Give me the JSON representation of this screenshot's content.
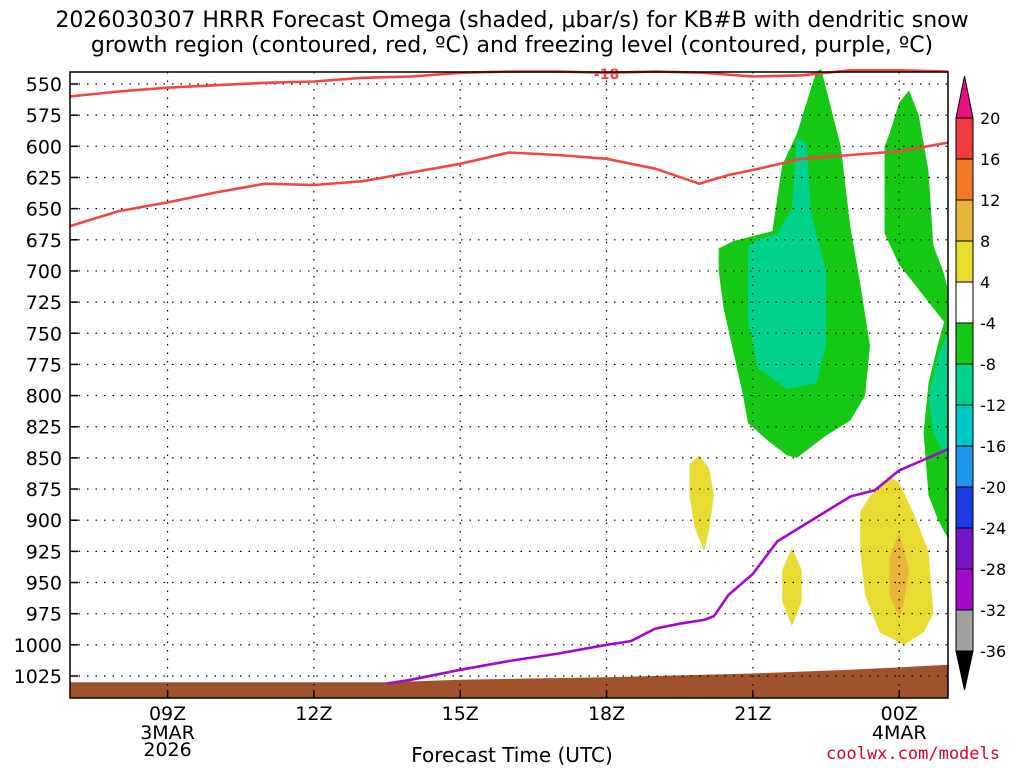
{
  "chart_data": {
    "type": "contour",
    "title": "2026030307 HRRR Forecast Omega (shaded, μbar/s) for KB#B with dendritic snow\ngrowth region (contoured, red, ºC) and freezing level (contoured, purple, ºC)",
    "xlabel": "Forecast Time (UTC)",
    "watermark": "coolwx.com/models",
    "x_range_hours": [
      7,
      25
    ],
    "x_ticks": [
      {
        "hour": 9,
        "label": "09Z",
        "sub": [
          "3MAR",
          "2026"
        ]
      },
      {
        "hour": 12,
        "label": "12Z",
        "sub": []
      },
      {
        "hour": 15,
        "label": "15Z",
        "sub": []
      },
      {
        "hour": 18,
        "label": "18Z",
        "sub": []
      },
      {
        "hour": 21,
        "label": "21Z",
        "sub": []
      },
      {
        "hour": 24,
        "label": "00Z",
        "sub": [
          "4MAR"
        ]
      }
    ],
    "y_ticks_mb": [
      550,
      575,
      600,
      625,
      650,
      675,
      700,
      725,
      750,
      775,
      800,
      825,
      850,
      875,
      900,
      925,
      950,
      975,
      1000,
      1025
    ],
    "grid": true,
    "colorbar": {
      "levels": [
        20,
        16,
        12,
        8,
        4,
        -4,
        -8,
        -12,
        -16,
        -20,
        -24,
        -28,
        -32,
        -36
      ],
      "colors": [
        "#e8117f",
        "#f03c3c",
        "#f07a28",
        "#e8b43c",
        "#e8dc32",
        "#ffffff",
        "#14c814",
        "#00d28c",
        "#00c8c8",
        "#1e96f0",
        "#1e3ce6",
        "#7814c8",
        "#a00ac8",
        "#a0a0a0",
        "#000000"
      ]
    },
    "contour_label": "-18",
    "series": [
      {
        "color": "#f04646",
        "points": [
          [
            7,
            560
          ],
          [
            8,
            556
          ],
          [
            9,
            553
          ],
          [
            10,
            551
          ],
          [
            11,
            549
          ],
          [
            12,
            548
          ],
          [
            13,
            545
          ],
          [
            14,
            544
          ],
          [
            15,
            541
          ],
          [
            16,
            540
          ],
          [
            17,
            540
          ],
          [
            18,
            541
          ],
          [
            19,
            540
          ],
          [
            20,
            541
          ],
          [
            21,
            544
          ],
          [
            22,
            543
          ],
          [
            23,
            539
          ],
          [
            24,
            539
          ],
          [
            25,
            540
          ]
        ]
      },
      {
        "color": "#f04646",
        "points": [
          [
            7,
            664
          ],
          [
            8,
            652
          ],
          [
            9,
            645
          ],
          [
            10,
            637
          ],
          [
            11,
            630
          ],
          [
            12,
            631
          ],
          [
            13,
            628
          ],
          [
            14,
            621
          ],
          [
            15,
            614
          ],
          [
            16,
            605
          ],
          [
            17,
            607
          ],
          [
            18,
            610
          ],
          [
            19,
            618
          ],
          [
            19.9,
            630
          ],
          [
            20.5,
            623
          ],
          [
            21,
            619
          ],
          [
            22,
            610
          ],
          [
            23,
            607
          ],
          [
            24,
            604
          ],
          [
            25,
            597
          ]
        ]
      },
      {
        "color": "#a00ac8",
        "points": [
          [
            13.5,
            1031
          ],
          [
            14,
            1028
          ],
          [
            15,
            1020
          ],
          [
            16,
            1013
          ],
          [
            17,
            1007
          ],
          [
            18,
            1000
          ],
          [
            18.5,
            997
          ],
          [
            19,
            987
          ],
          [
            19.5,
            983
          ],
          [
            20,
            980
          ],
          [
            20.2,
            977
          ],
          [
            20.5,
            960
          ],
          [
            21,
            943
          ],
          [
            21.5,
            917
          ],
          [
            22,
            905
          ],
          [
            23,
            881
          ],
          [
            23.5,
            876
          ],
          [
            24,
            860
          ],
          [
            25,
            843
          ]
        ]
      }
    ],
    "regions": [
      {
        "value": -6,
        "points": [
          [
            20.3,
            682
          ],
          [
            20.6,
            676
          ],
          [
            21,
            672
          ],
          [
            21.4,
            668
          ],
          [
            21.6,
            615
          ],
          [
            21.9,
            590
          ],
          [
            22.3,
            540
          ],
          [
            22.4,
            538
          ],
          [
            22.8,
            600
          ],
          [
            23,
            665
          ],
          [
            23.2,
            710
          ],
          [
            23.4,
            760
          ],
          [
            23.3,
            800
          ],
          [
            23,
            820
          ],
          [
            22.5,
            832
          ],
          [
            21.9,
            850
          ],
          [
            21.7,
            848
          ],
          [
            21.3,
            836
          ],
          [
            20.9,
            822
          ],
          [
            20.8,
            800
          ],
          [
            20.6,
            765
          ],
          [
            20.4,
            730
          ],
          [
            20.3,
            700
          ]
        ]
      },
      {
        "value": -10,
        "points": [
          [
            20.9,
            680
          ],
          [
            21.1,
            675
          ],
          [
            21.5,
            670
          ],
          [
            21.8,
            650
          ],
          [
            21.9,
            593
          ],
          [
            22.1,
            597
          ],
          [
            22.2,
            655
          ],
          [
            22.5,
            700
          ],
          [
            22.5,
            760
          ],
          [
            22.3,
            790
          ],
          [
            21.7,
            795
          ],
          [
            21.1,
            778
          ],
          [
            20.9,
            740
          ]
        ]
      },
      {
        "value": -6,
        "points": [
          [
            23.7,
            600
          ],
          [
            23.8,
            590
          ],
          [
            24,
            565
          ],
          [
            24.2,
            555
          ],
          [
            24.4,
            575
          ],
          [
            24.6,
            620
          ],
          [
            24.7,
            680
          ],
          [
            24.9,
            700
          ],
          [
            25,
            715
          ],
          [
            25,
            745
          ],
          [
            24.7,
            730
          ],
          [
            24.3,
            710
          ],
          [
            24,
            695
          ],
          [
            23.7,
            670
          ]
        ]
      },
      {
        "value": -6,
        "points": [
          [
            25,
            730
          ],
          [
            24.8,
            758
          ],
          [
            24.6,
            790
          ],
          [
            24.5,
            830
          ],
          [
            24.6,
            880
          ],
          [
            24.8,
            900
          ],
          [
            25,
            915
          ]
        ]
      },
      {
        "value": -10,
        "points": [
          [
            25,
            748
          ],
          [
            24.8,
            768
          ],
          [
            24.6,
            800
          ],
          [
            24.7,
            830
          ],
          [
            24.9,
            845
          ],
          [
            25,
            848
          ]
        ]
      },
      {
        "value": 6,
        "points": [
          [
            19.7,
            855
          ],
          [
            19.9,
            848
          ],
          [
            20.1,
            858
          ],
          [
            20.2,
            880
          ],
          [
            20.1,
            908
          ],
          [
            20,
            925
          ],
          [
            19.8,
            905
          ],
          [
            19.7,
            880
          ]
        ]
      },
      {
        "value": 6,
        "points": [
          [
            21.6,
            940
          ],
          [
            21.8,
            922
          ],
          [
            22,
            940
          ],
          [
            22,
            965
          ],
          [
            21.8,
            985
          ],
          [
            21.6,
            965
          ]
        ]
      },
      {
        "value": 6,
        "points": [
          [
            23.2,
            893
          ],
          [
            23.5,
            875
          ],
          [
            23.8,
            865
          ],
          [
            24,
            870
          ],
          [
            24.3,
            895
          ],
          [
            24.6,
            925
          ],
          [
            24.7,
            975
          ],
          [
            24.5,
            990
          ],
          [
            24.1,
            1000
          ],
          [
            23.6,
            990
          ],
          [
            23.3,
            960
          ],
          [
            23.2,
            925
          ]
        ]
      },
      {
        "value": 10,
        "points": [
          [
            23.8,
            930
          ],
          [
            24,
            910
          ],
          [
            24.2,
            940
          ],
          [
            24.1,
            965
          ],
          [
            24,
            978
          ],
          [
            23.8,
            960
          ]
        ]
      }
    ],
    "ground": {
      "color": "#a0522d",
      "points": [
        [
          7,
          1030
        ],
        [
          13.5,
          1030
        ],
        [
          15,
          1028
        ],
        [
          18,
          1026
        ],
        [
          21,
          1023
        ],
        [
          23,
          1020
        ],
        [
          25,
          1016
        ]
      ]
    }
  }
}
